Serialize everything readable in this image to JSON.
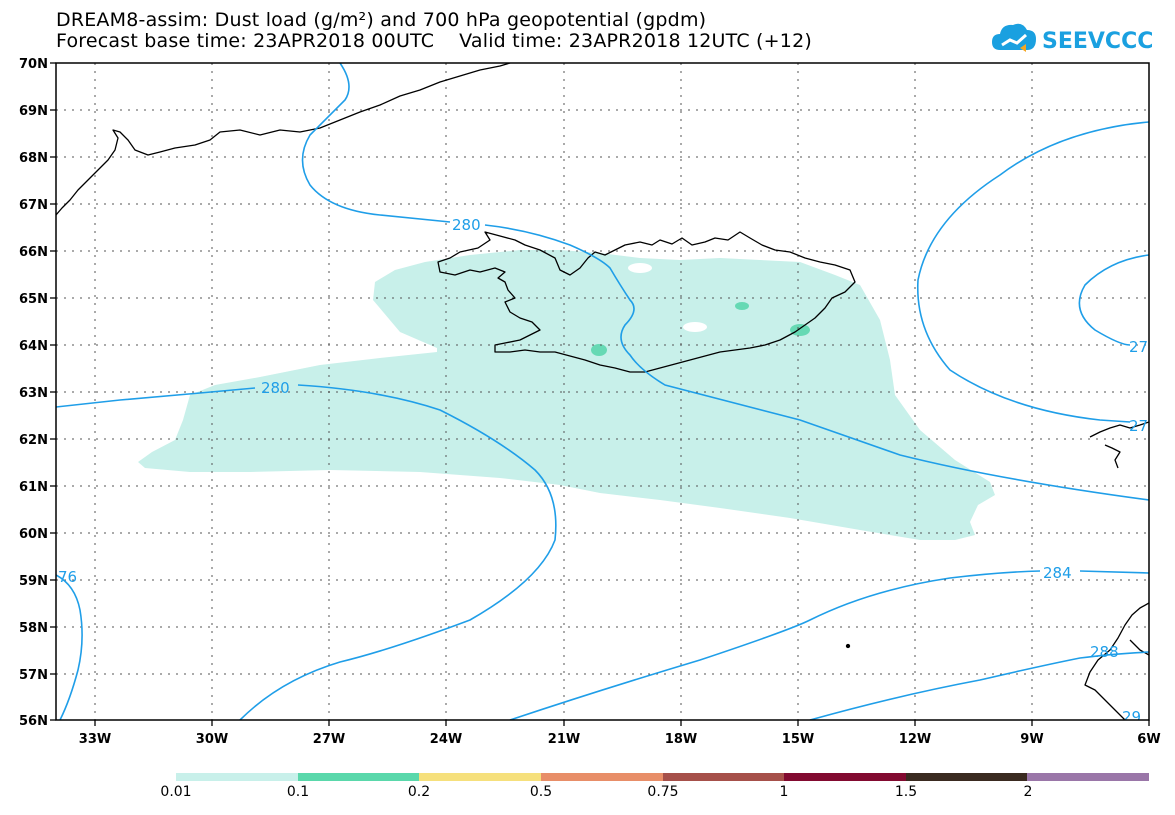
{
  "header": {
    "title_line1": "DREAM8-assim: Dust load (g/m²) and 700 hPa geopotential (gpdm)",
    "title_line2": "Forecast base time: 23APR2018 00UTC    Valid time: 23APR2018 12UTC (+12)"
  },
  "logo": {
    "text": "SEEVCCC",
    "color": "#1aa0e0",
    "icon": "cloud-chart-icon"
  },
  "map": {
    "lat_labels": [
      "70N",
      "69N",
      "68N",
      "67N",
      "66N",
      "65N",
      "64N",
      "63N",
      "62N",
      "61N",
      "60N",
      "59N",
      "58N",
      "57N",
      "56N"
    ],
    "lon_labels": [
      "33W",
      "30W",
      "27W",
      "24W",
      "21W",
      "18W",
      "15W",
      "12W",
      "9W",
      "6W"
    ],
    "contour_labels": [
      "280",
      "280",
      "284",
      "27",
      "27",
      "76",
      "288",
      "29"
    ],
    "colors": {
      "contour": "#1f9ee8",
      "dust_low": "#c8f0ea",
      "dust_mid": "#66d9b4",
      "coast": "#000000"
    }
  },
  "colorbar": {
    "labels": [
      "0.01",
      "0.1",
      "0.2",
      "0.5",
      "0.75",
      "1",
      "1.5",
      "2"
    ],
    "colors": [
      "#c8f0ea",
      "#5ad8ab",
      "#f6e07c",
      "#e88e68",
      "#a6504a",
      "#820a30",
      "#3a2a20",
      "#9a76a8"
    ]
  }
}
